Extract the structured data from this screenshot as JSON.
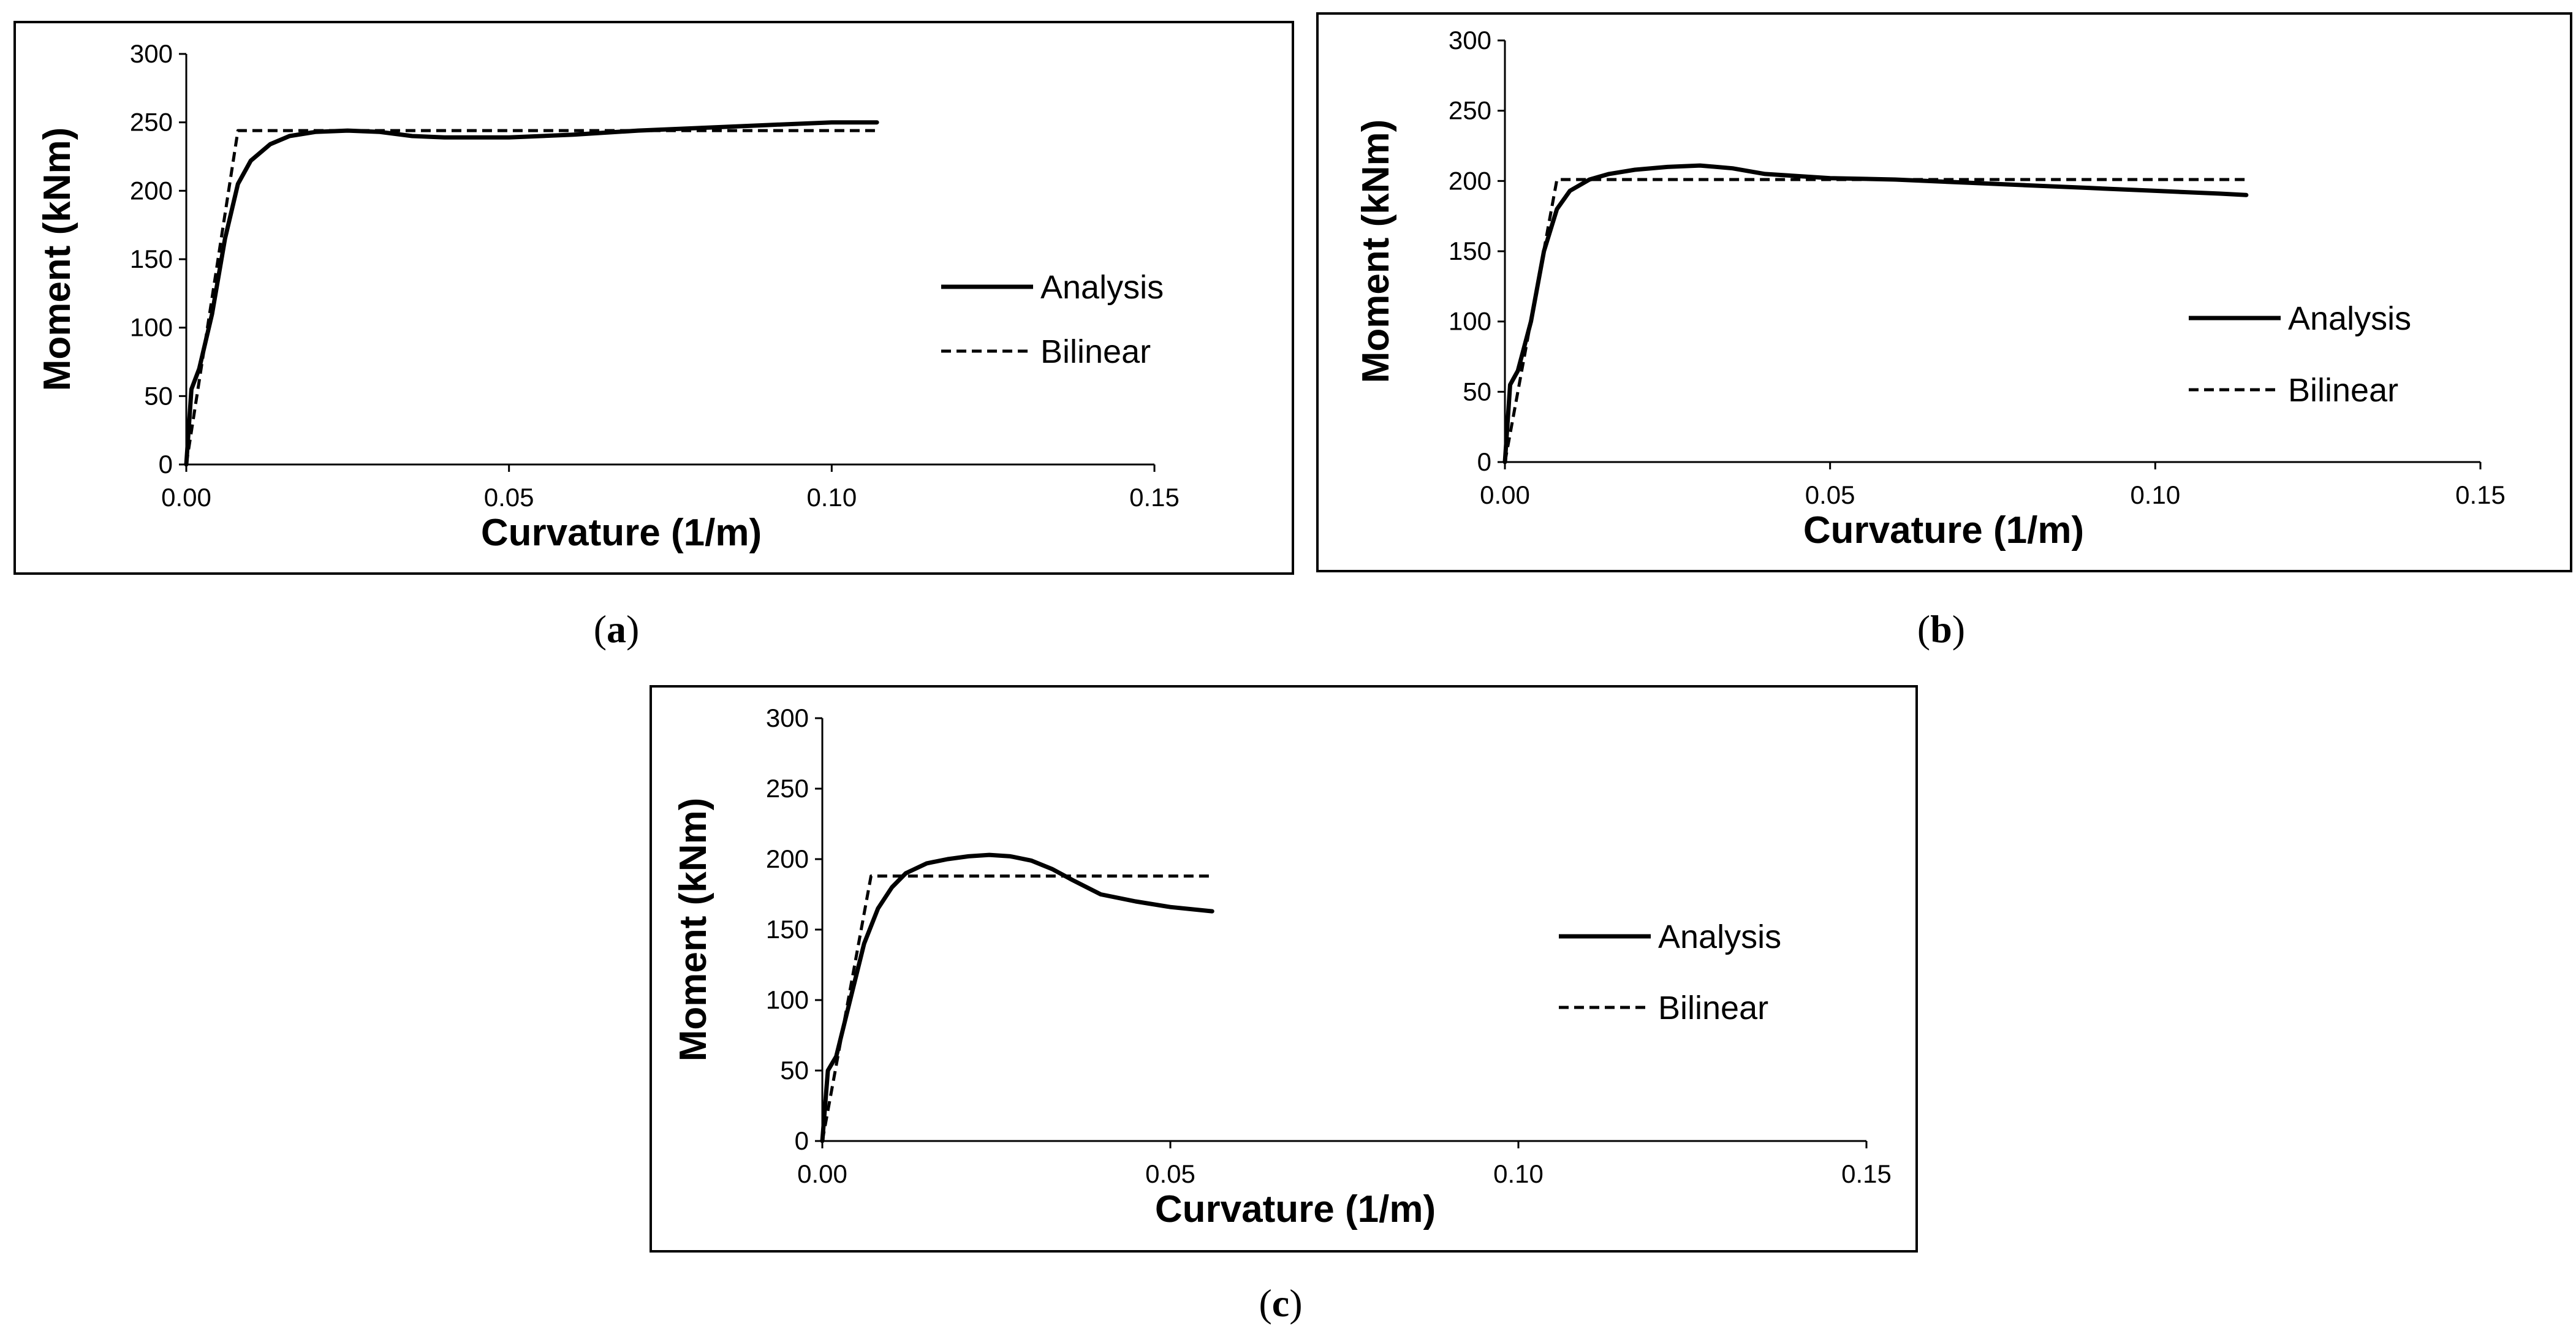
{
  "chart_data": [
    {
      "id": "a",
      "type": "line",
      "caption": "a",
      "xlabel": "Curvature (1/m)",
      "ylabel": "Moment (kNm)",
      "xlim": [
        0,
        0.15
      ],
      "ylim": [
        0,
        300
      ],
      "xticks": [
        "0.00",
        "0.05",
        "0.10",
        "0.15"
      ],
      "yticks": [
        "0",
        "50",
        "100",
        "150",
        "200",
        "250",
        "300"
      ],
      "xtick_values": [
        0,
        0.05,
        0.1,
        0.15
      ],
      "ytick_values": [
        0,
        50,
        100,
        150,
        200,
        250,
        300
      ],
      "legend_position": "right",
      "series": [
        {
          "name": "Analysis",
          "style": "solid",
          "x": [
            0,
            0.0008,
            0.002,
            0.004,
            0.006,
            0.008,
            0.01,
            0.013,
            0.016,
            0.02,
            0.025,
            0.03,
            0.035,
            0.04,
            0.05,
            0.06,
            0.07,
            0.08,
            0.09,
            0.1,
            0.107
          ],
          "y": [
            0,
            55,
            70,
            110,
            165,
            205,
            222,
            234,
            240,
            243,
            244,
            243,
            240,
            239,
            239,
            241,
            244,
            246,
            248,
            250,
            250
          ]
        },
        {
          "name": "Bilinear",
          "style": "dashed",
          "x": [
            0,
            0.008,
            0.107
          ],
          "y": [
            0,
            244,
            244
          ]
        }
      ]
    },
    {
      "id": "b",
      "type": "line",
      "caption": "b",
      "xlabel": "Curvature (1/m)",
      "ylabel": "Moment (kNm)",
      "xlim": [
        0,
        0.15
      ],
      "ylim": [
        0,
        300
      ],
      "xticks": [
        "0.00",
        "0.05",
        "0.10",
        "0.15"
      ],
      "yticks": [
        "0",
        "50",
        "100",
        "150",
        "200",
        "250",
        "300"
      ],
      "xtick_values": [
        0,
        0.05,
        0.1,
        0.15
      ],
      "ytick_values": [
        0,
        50,
        100,
        150,
        200,
        250,
        300
      ],
      "legend_position": "right",
      "series": [
        {
          "name": "Analysis",
          "style": "solid",
          "x": [
            0,
            0.0008,
            0.002,
            0.004,
            0.006,
            0.008,
            0.01,
            0.013,
            0.016,
            0.02,
            0.025,
            0.03,
            0.035,
            0.04,
            0.05,
            0.06,
            0.07,
            0.08,
            0.09,
            0.1,
            0.11,
            0.114
          ],
          "y": [
            0,
            55,
            65,
            100,
            150,
            180,
            193,
            201,
            205,
            208,
            210,
            211,
            209,
            205,
            202,
            201,
            199,
            197,
            195,
            193,
            191,
            190
          ]
        },
        {
          "name": "Bilinear",
          "style": "dashed",
          "x": [
            0,
            0.008,
            0.114
          ],
          "y": [
            0,
            201,
            201
          ]
        }
      ]
    },
    {
      "id": "c",
      "type": "line",
      "caption": "c",
      "xlabel": "Curvature (1/m)",
      "ylabel": "Moment (kNm)",
      "xlim": [
        0,
        0.15
      ],
      "ylim": [
        0,
        300
      ],
      "xticks": [
        "0.00",
        "0.05",
        "0.10",
        "0.15"
      ],
      "yticks": [
        "0",
        "50",
        "100",
        "150",
        "200",
        "250",
        "300"
      ],
      "xtick_values": [
        0,
        0.05,
        0.1,
        0.15
      ],
      "ytick_values": [
        0,
        50,
        100,
        150,
        200,
        250,
        300
      ],
      "legend_position": "right",
      "series": [
        {
          "name": "Analysis",
          "style": "solid",
          "x": [
            0,
            0.0008,
            0.002,
            0.004,
            0.006,
            0.008,
            0.01,
            0.012,
            0.015,
            0.018,
            0.021,
            0.024,
            0.027,
            0.03,
            0.033,
            0.036,
            0.04,
            0.045,
            0.05,
            0.056
          ],
          "y": [
            0,
            50,
            60,
            100,
            140,
            165,
            180,
            190,
            197,
            200,
            202,
            203,
            202,
            199,
            193,
            185,
            175,
            170,
            166,
            163
          ]
        },
        {
          "name": "Bilinear",
          "style": "dashed",
          "x": [
            0,
            0.007,
            0.056
          ],
          "y": [
            0,
            188,
            188
          ]
        }
      ]
    }
  ]
}
